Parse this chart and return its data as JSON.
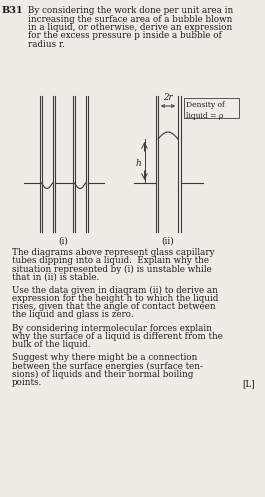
{
  "title_label": "B31",
  "text_block1": "By considering the work done per unit area in increasing the surface area of a bubble blown in a liquid, or otherwise, derive an expression for the excess pressure p inside a bubble of radius r.",
  "density_label": "Density of\nliquid = ρ",
  "label_2r": "2r",
  "label_h": "h",
  "label_i": "(i)",
  "label_ii": "(ii)",
  "text_block2": "The diagrams above represent glass capillary tubes dipping into a liquid. Explain why the situation represented by (i) is unstable while that in (ii) is stable.",
  "text_block3": "Use the data given in diagram (ii) to derive an expression for the height h to which the liquid rises, given that the angle of contact between the liquid and glass is zero.",
  "text_block4": "By considering intermolecular forces explain why the surface of a liquid is different from the bulk of the liquid.",
  "text_block5": "Suggest why there might be a connection between the surface energies (surface ten-sions) of liquids and their normal boiling points.",
  "label_L": "[L]",
  "bg_color": "#f0ece5",
  "line_color": "#3a3a3a",
  "text_color": "#1a1a1a",
  "fig_w": 2.65,
  "fig_h": 4.97,
  "dpi": 100
}
